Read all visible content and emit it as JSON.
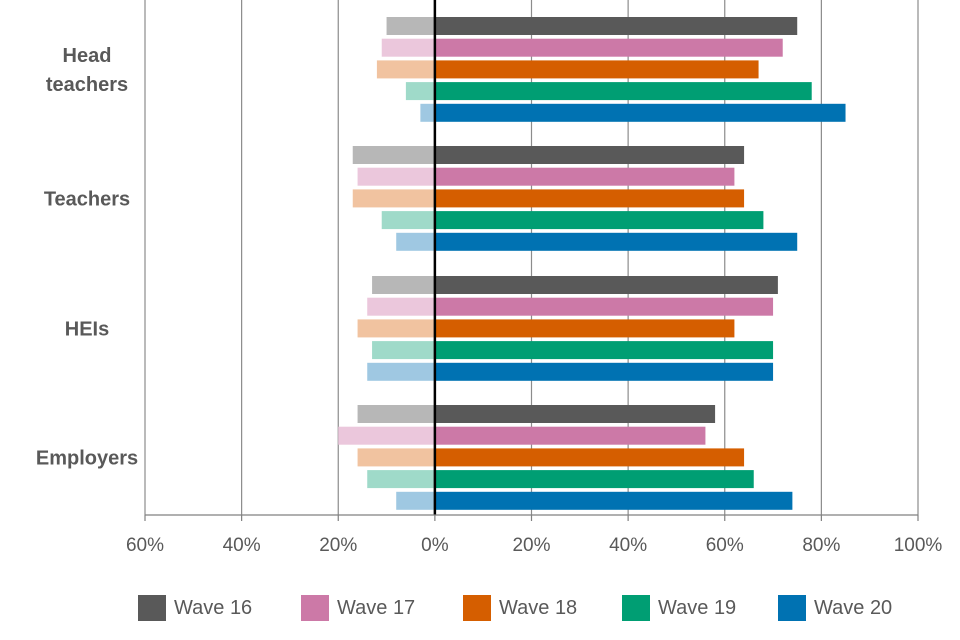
{
  "chart_data": {
    "type": "bar",
    "orientation": "horizontal",
    "diverging": true,
    "categories": [
      "Head teachers",
      "Teachers",
      "HEIs",
      "Employers"
    ],
    "series": [
      {
        "name": "Wave 16",
        "color": "#595959",
        "light_color": "#b7b7b7",
        "positive": [
          75,
          64,
          71,
          58
        ],
        "negative": [
          10,
          17,
          13,
          16
        ]
      },
      {
        "name": "Wave 17",
        "color": "#cc79a7",
        "light_color": "#ebc7dc",
        "positive": [
          72,
          62,
          70,
          56
        ],
        "negative": [
          11,
          16,
          14,
          20
        ]
      },
      {
        "name": "Wave 18",
        "color": "#d55e00",
        "light_color": "#f1c3a0",
        "positive": [
          67,
          64,
          62,
          64
        ],
        "negative": [
          12,
          17,
          16,
          16
        ]
      },
      {
        "name": "Wave 19",
        "color": "#009e73",
        "light_color": "#9fdac9",
        "positive": [
          78,
          68,
          70,
          66
        ],
        "negative": [
          6,
          11,
          13,
          14
        ]
      },
      {
        "name": "Wave 20",
        "color": "#0072b2",
        "light_color": "#9fc8e2",
        "positive": [
          85,
          75,
          70,
          74
        ],
        "negative": [
          3,
          8,
          14,
          8
        ]
      }
    ],
    "xlim": [
      -60,
      100
    ],
    "x_ticks": [
      -60,
      -40,
      -20,
      0,
      20,
      40,
      60,
      80,
      100
    ],
    "x_tick_labels": [
      "60%",
      "40%",
      "20%",
      "0%",
      "20%",
      "40%",
      "60%",
      "80%",
      "100%"
    ],
    "grid": "vertical",
    "legend_position": "bottom",
    "title": "",
    "xlabel": "",
    "ylabel": ""
  }
}
